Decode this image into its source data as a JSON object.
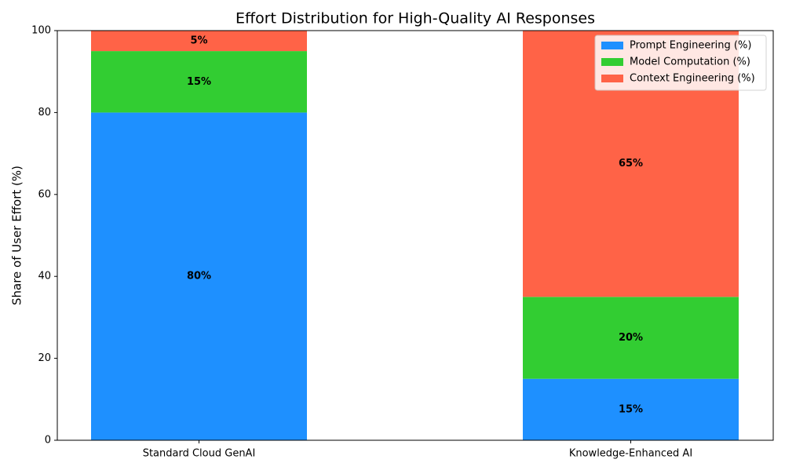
{
  "chart_data": {
    "type": "stacked_bar",
    "title": "Effort Distribution for High-Quality AI Responses",
    "y_label": "Share of User Effort (%)",
    "categories": [
      "Standard Cloud GenAI",
      "Knowledge-Enhanced AI"
    ],
    "series": [
      {
        "name": "Prompt Engineering (%)",
        "color": "#1e90ff",
        "values": [
          80,
          15
        ],
        "value_labels": [
          "80%",
          "15%"
        ]
      },
      {
        "name": "Model Computation (%)",
        "color": "#32cd32",
        "values": [
          15,
          20
        ],
        "value_labels": [
          "15%",
          "20%"
        ]
      },
      {
        "name": "Context Engineering (%)",
        "color": "#ff6347",
        "values": [
          5,
          65
        ],
        "value_labels": [
          "5%",
          "65%"
        ]
      }
    ],
    "ylim": [
      0,
      100
    ],
    "yticks": [
      0,
      20,
      40,
      60,
      80,
      100
    ],
    "legend": "upper right"
  }
}
